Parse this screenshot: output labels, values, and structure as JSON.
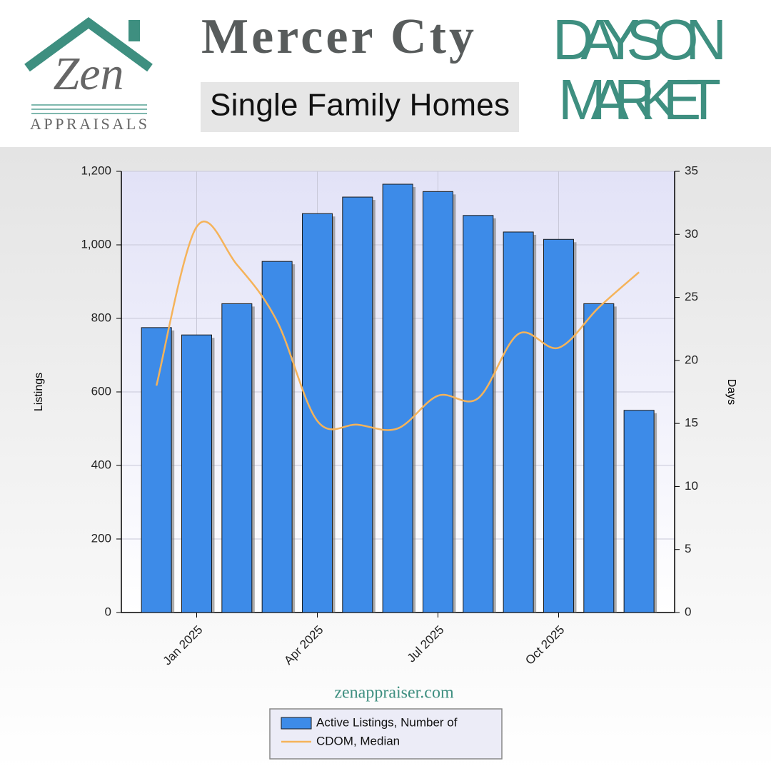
{
  "logo": {
    "name": "Zen",
    "tagline": "APPRAISALS"
  },
  "header": {
    "title": "Mercer Cty",
    "subtitle": "Single Family Homes",
    "headline": [
      "DAYS ON",
      "MARKET"
    ]
  },
  "footer": {
    "website": "zenappraiser.com"
  },
  "chart_data": {
    "type": "bar",
    "categories": [
      null,
      "Jan 2025",
      null,
      null,
      "Apr 2025",
      null,
      null,
      "Jul 2025",
      null,
      null,
      "Oct 2025",
      null,
      null
    ],
    "series": [
      {
        "name": "Active Listings, Number of",
        "type": "bar",
        "color": "#3d8be8",
        "values": [
          775,
          755,
          840,
          955,
          1085,
          1130,
          1165,
          1145,
          1080,
          1035,
          1015,
          840,
          550
        ]
      },
      {
        "name": "CDOM, Median",
        "type": "line",
        "axis": "y2",
        "color": "#f5b35a",
        "values": [
          18,
          30.6,
          27.6,
          23.1,
          15.2,
          14.9,
          14.6,
          17.2,
          17,
          22.1,
          21,
          24.2,
          27
        ]
      }
    ],
    "y_label": "Listings",
    "y2_label": "Days",
    "ylim": [
      0,
      1200
    ],
    "yticks": [
      0,
      200,
      400,
      600,
      800,
      {
        "value": 1000,
        "label": "1,000"
      },
      {
        "value": 1200,
        "label": "1,200"
      }
    ],
    "y2lim": [
      0,
      35
    ],
    "y2ticks": [
      0,
      5,
      10,
      15,
      20,
      25,
      30,
      35
    ],
    "grid": true,
    "legend": "bottom"
  }
}
